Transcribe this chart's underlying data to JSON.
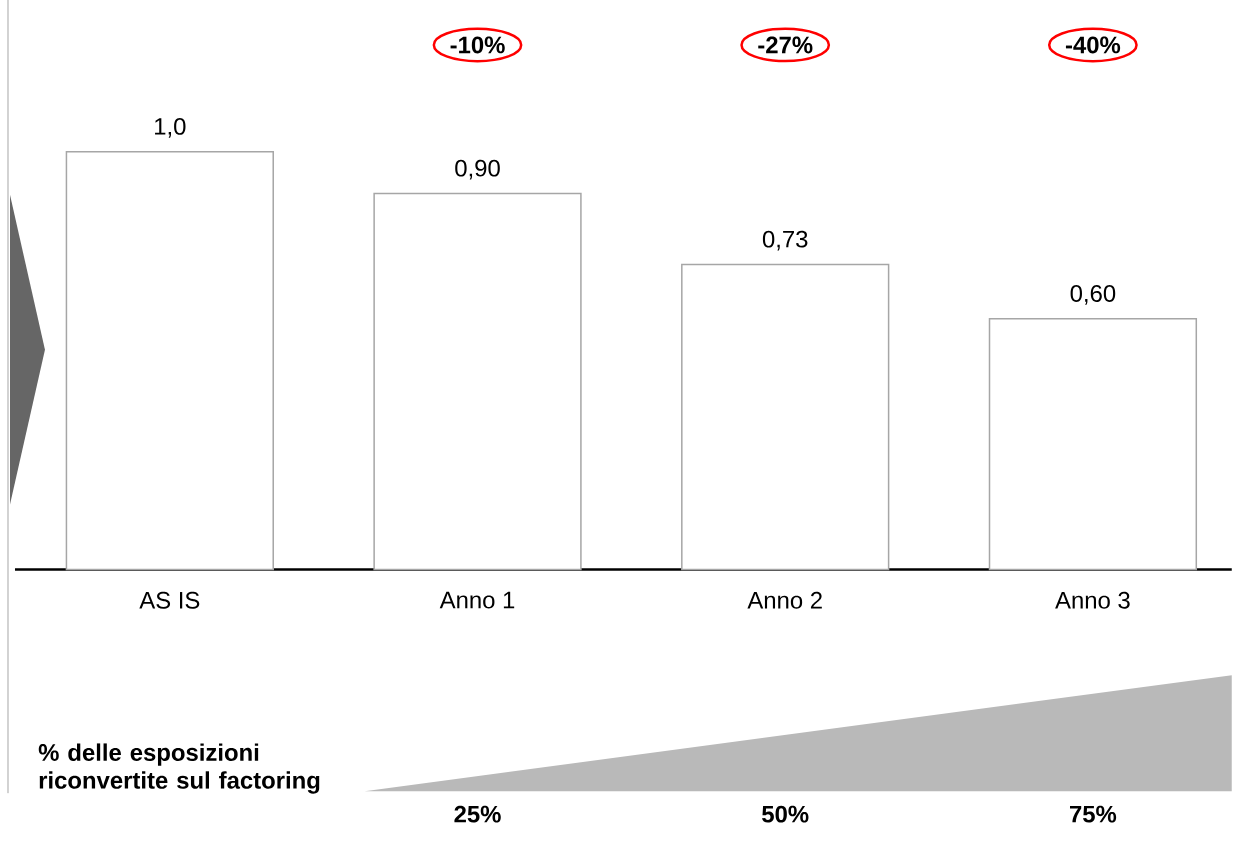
{
  "chart_data": {
    "type": "bar",
    "categories": [
      "AS IS",
      "Anno 1",
      "Anno 2",
      "Anno 3"
    ],
    "values": [
      1.0,
      0.9,
      0.73,
      0.6
    ],
    "color": "#a6a6a6",
    "value_labels": [
      "1,0",
      "0,90",
      "0,73",
      "0,60"
    ],
    "annotations": [
      "-10%",
      "-27%",
      "-40%",
      "% delle esposizioni riconvertite sul factoring",
      "25%",
      "50%",
      "75%"
    ]
  }
}
